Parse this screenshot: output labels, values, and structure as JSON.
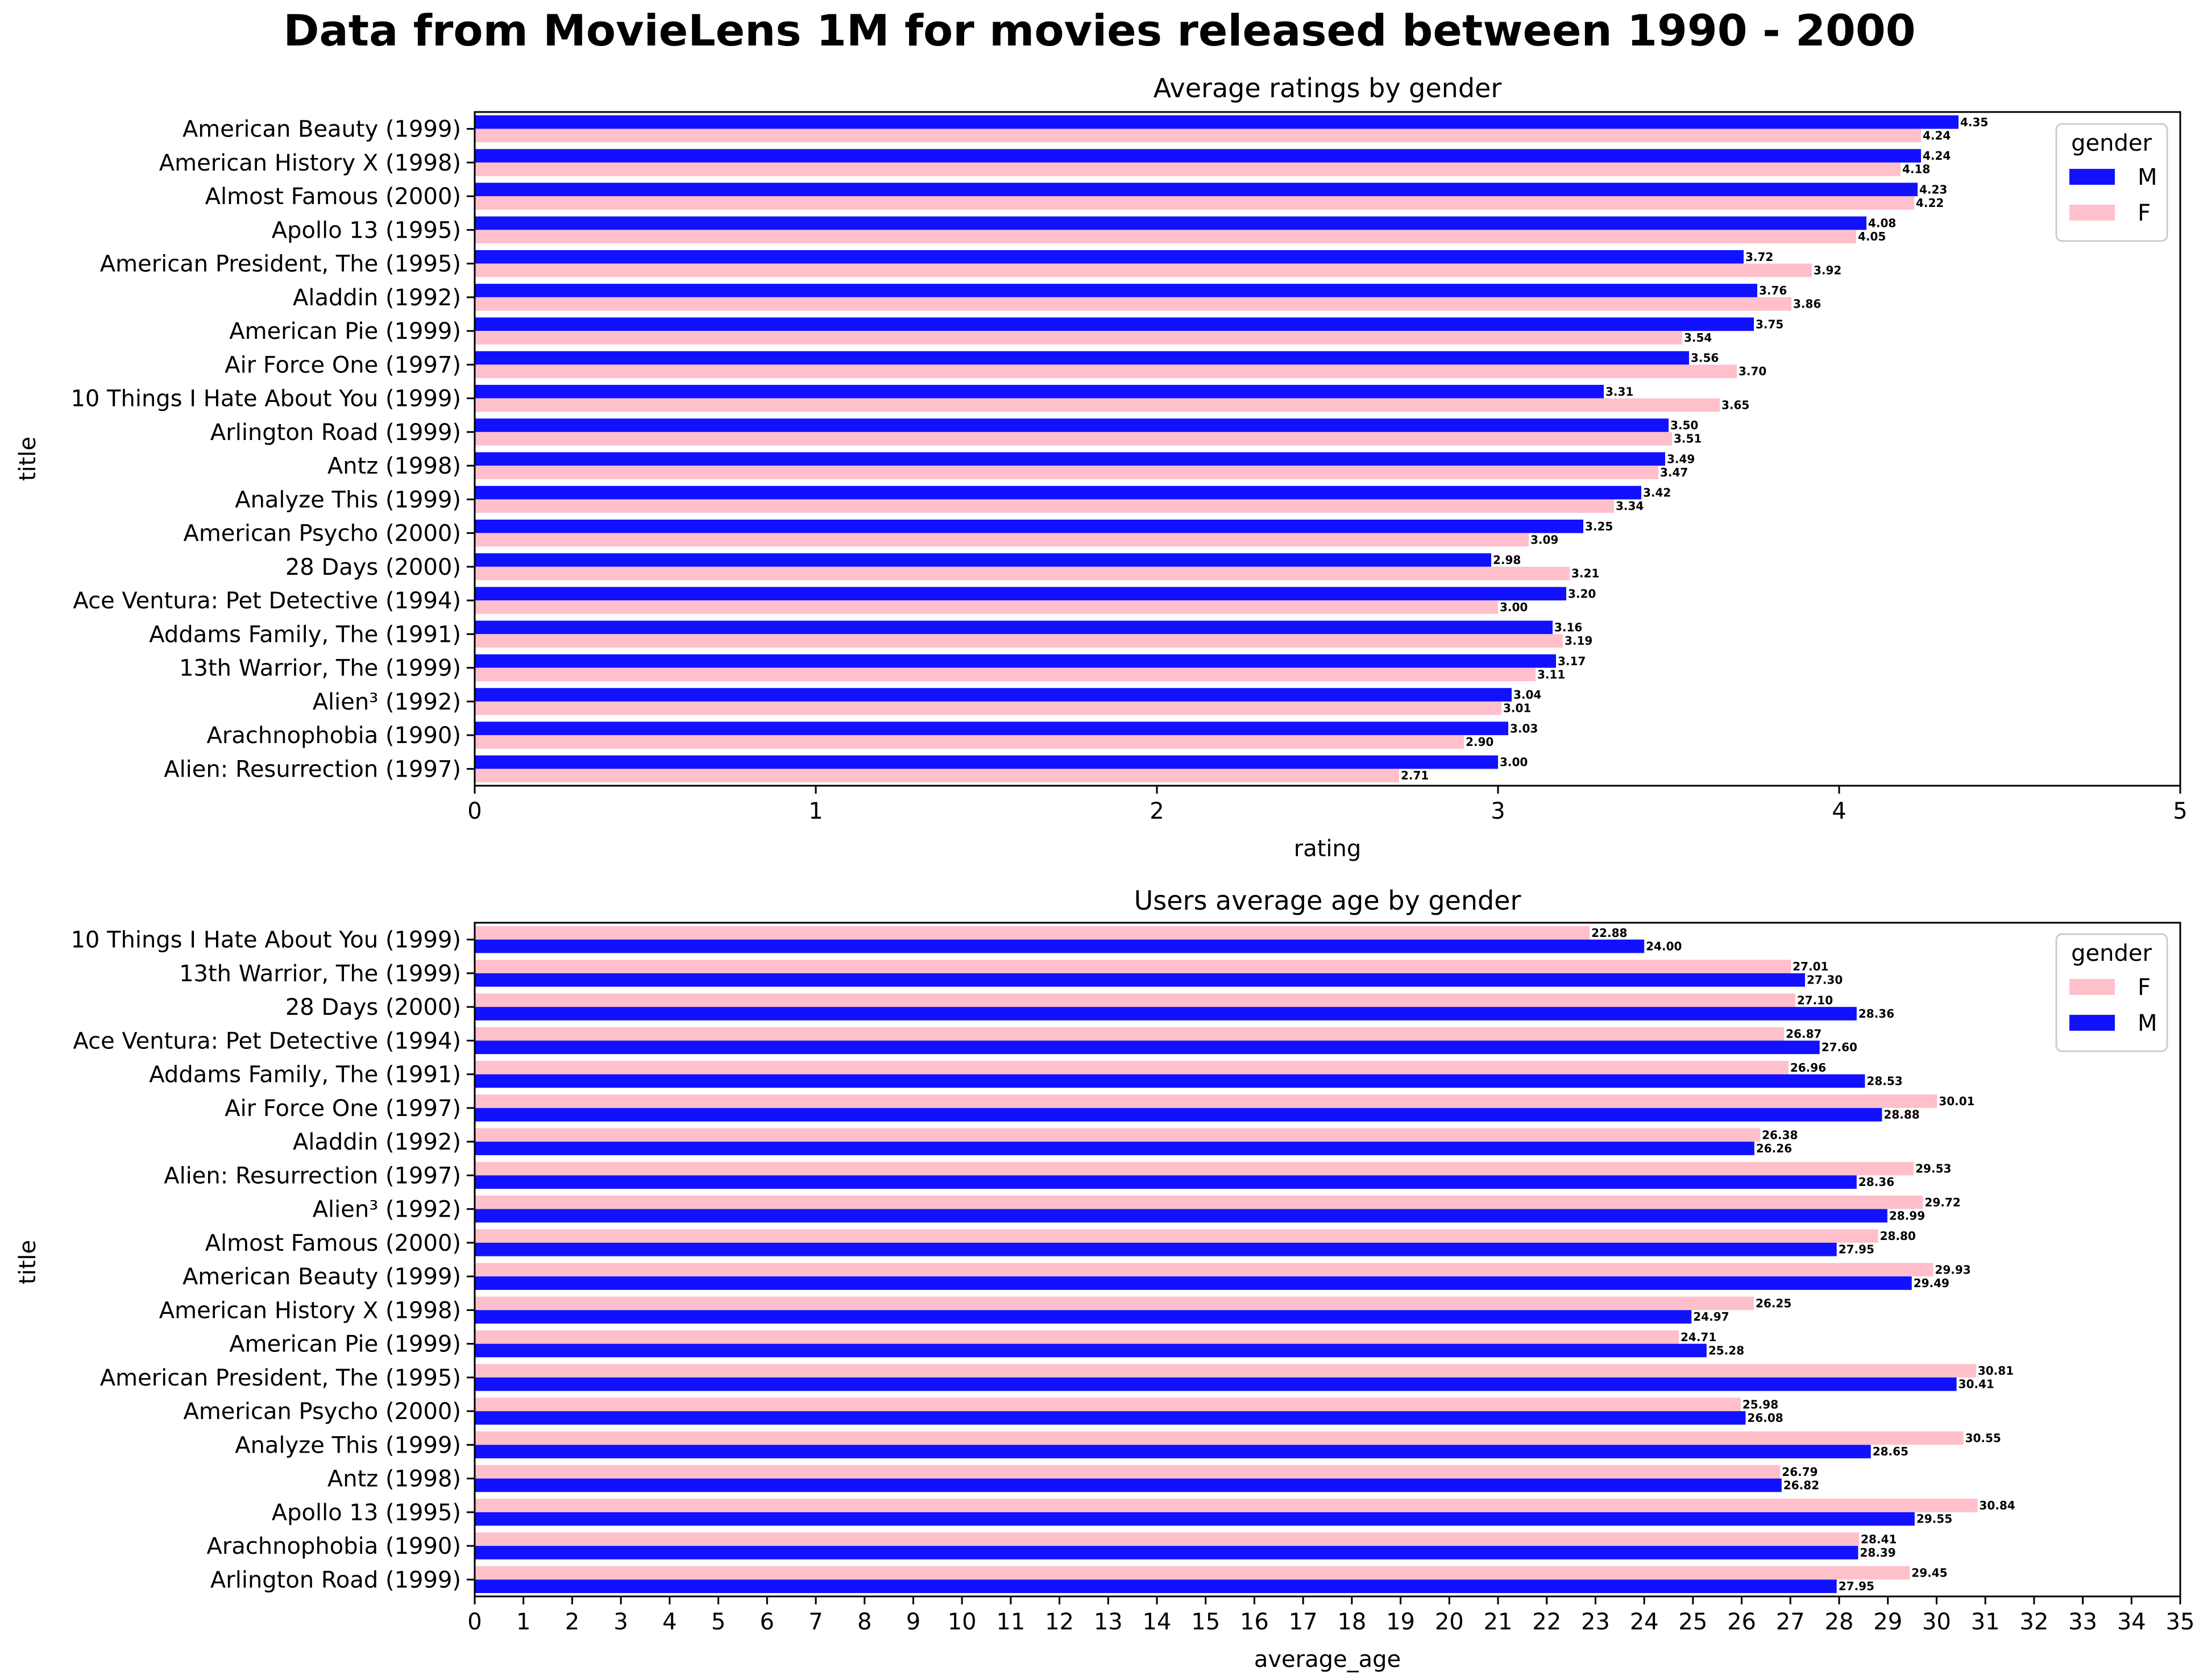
{
  "figure_title": "Data from MovieLens 1M for movies released between 1990 - 2000",
  "colors": {
    "M": "#1111ff",
    "F": "#ffc0cb"
  },
  "chart_data": [
    {
      "type": "bar",
      "orientation": "horizontal",
      "title": "Average ratings by gender",
      "xlabel": "rating",
      "ylabel": "title",
      "xlim": [
        0,
        5
      ],
      "xticks": [
        0,
        1,
        2,
        3,
        4,
        5
      ],
      "grid": false,
      "legend": {
        "title": "gender",
        "placement": "top-right",
        "entries": [
          "M",
          "F"
        ]
      },
      "categories": [
        "American Beauty (1999)",
        "American History X (1998)",
        "Almost Famous (2000)",
        "Apollo 13 (1995)",
        "American President, The (1995)",
        "Aladdin (1992)",
        "American Pie (1999)",
        "Air Force One (1997)",
        "10 Things I Hate About You (1999)",
        "Arlington Road (1999)",
        "Antz (1998)",
        "Analyze This (1999)",
        "American Psycho (2000)",
        "28 Days (2000)",
        "Ace Ventura: Pet Detective (1994)",
        "Addams Family, The (1991)",
        "13th Warrior, The (1999)",
        "Alien³ (1992)",
        "Arachnophobia (1990)",
        "Alien: Resurrection (1997)"
      ],
      "series": [
        {
          "name": "M",
          "values": [
            4.35,
            4.24,
            4.23,
            4.08,
            3.72,
            3.76,
            3.75,
            3.56,
            3.31,
            3.5,
            3.49,
            3.42,
            3.25,
            2.98,
            3.2,
            3.16,
            3.17,
            3.04,
            3.03,
            3.0
          ]
        },
        {
          "name": "F",
          "values": [
            4.24,
            4.18,
            4.22,
            4.05,
            3.92,
            3.86,
            3.54,
            3.7,
            3.65,
            3.51,
            3.47,
            3.34,
            3.09,
            3.21,
            3.0,
            3.19,
            3.11,
            3.01,
            2.9,
            2.71
          ]
        }
      ]
    },
    {
      "type": "bar",
      "orientation": "horizontal",
      "title": "Users average age by gender",
      "xlabel": "average_age",
      "ylabel": "title",
      "xlim": [
        0,
        35
      ],
      "xticks": [
        0,
        1,
        2,
        3,
        4,
        5,
        6,
        7,
        8,
        9,
        10,
        11,
        12,
        13,
        14,
        15,
        16,
        17,
        18,
        19,
        20,
        21,
        22,
        23,
        24,
        25,
        26,
        27,
        28,
        29,
        30,
        31,
        32,
        33,
        34,
        35
      ],
      "grid": false,
      "legend": {
        "title": "gender",
        "placement": "top-right",
        "entries": [
          "F",
          "M"
        ]
      },
      "categories": [
        "10 Things I Hate About You (1999)",
        "13th Warrior, The (1999)",
        "28 Days (2000)",
        "Ace Ventura: Pet Detective (1994)",
        "Addams Family, The (1991)",
        "Air Force One (1997)",
        "Aladdin (1992)",
        "Alien: Resurrection (1997)",
        "Alien³ (1992)",
        "Almost Famous (2000)",
        "American Beauty (1999)",
        "American History X (1998)",
        "American Pie (1999)",
        "American President, The (1995)",
        "American Psycho (2000)",
        "Analyze This (1999)",
        "Antz (1998)",
        "Apollo 13 (1995)",
        "Arachnophobia (1990)",
        "Arlington Road (1999)"
      ],
      "series": [
        {
          "name": "F",
          "values": [
            22.88,
            27.01,
            27.1,
            26.87,
            26.96,
            30.01,
            26.38,
            29.53,
            29.72,
            28.8,
            29.93,
            26.25,
            24.71,
            30.81,
            25.98,
            30.55,
            26.79,
            30.84,
            28.41,
            29.45
          ]
        },
        {
          "name": "M",
          "values": [
            24.0,
            27.3,
            28.36,
            27.6,
            28.53,
            28.88,
            26.26,
            28.36,
            28.99,
            27.95,
            29.49,
            24.97,
            25.28,
            30.41,
            26.08,
            28.65,
            26.82,
            29.55,
            28.39,
            27.95
          ]
        }
      ]
    }
  ]
}
